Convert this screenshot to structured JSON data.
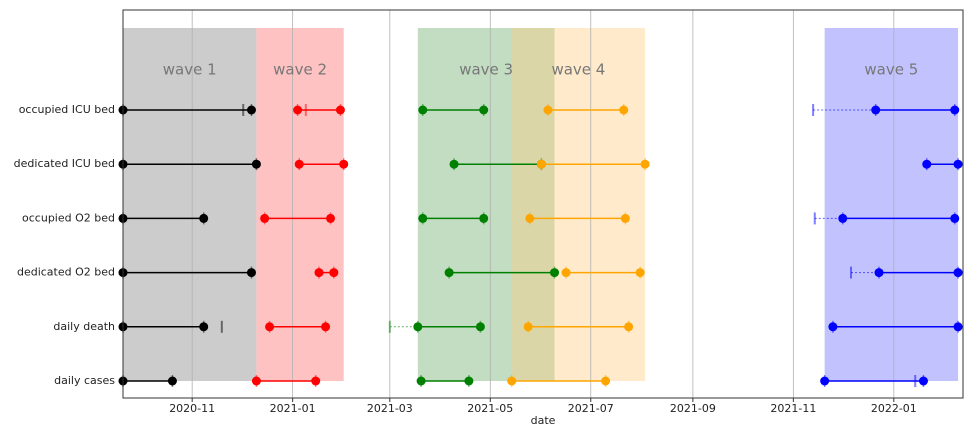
{
  "chart_data": {
    "type": "timeline",
    "xlabel": "date",
    "xlim": [
      "2020-09-20",
      "2022-02-12"
    ],
    "xticks": [
      "2020-11",
      "2021-01",
      "2021-03",
      "2021-05",
      "2021-07",
      "2021-09",
      "2021-11",
      "2022-01"
    ],
    "grid": true,
    "categories": [
      "occupied ICU bed",
      "dedicated ICU bed",
      "occupied O2 bed",
      "dedicated O2 bed",
      "daily death",
      "daily cases"
    ],
    "waves": [
      {
        "name": "wave 1",
        "fill": "#808080",
        "color": "#000000",
        "start": "2020-09-20",
        "end": "2020-12-10",
        "segments": [
          {
            "start": "2020-09-20",
            "end": "2020-12-07",
            "tick": "2020-12-02"
          },
          {
            "start": "2020-09-20",
            "end": "2020-12-10"
          },
          {
            "start": "2020-09-20",
            "end": "2020-11-08"
          },
          {
            "start": "2020-09-20",
            "end": "2020-12-07"
          },
          {
            "start": "2020-09-20",
            "end": "2020-11-08",
            "tick": "2020-11-19"
          },
          {
            "start": "2020-09-20",
            "end": "2020-10-20"
          }
        ]
      },
      {
        "name": "wave 2",
        "fill": "#ff6666",
        "color": "#ff0000",
        "start": "2020-12-10",
        "end": "2021-02-01",
        "segments": [
          {
            "start": "2021-01-04",
            "end": "2021-01-30",
            "tick": "2021-01-09"
          },
          {
            "start": "2021-01-05",
            "end": "2021-02-01"
          },
          {
            "start": "2020-12-15",
            "end": "2021-01-24"
          },
          {
            "start": "2021-01-17",
            "end": "2021-01-26"
          },
          {
            "start": "2020-12-18",
            "end": "2021-01-21"
          },
          {
            "start": "2020-12-10",
            "end": "2021-01-15"
          }
        ]
      },
      {
        "name": "wave 3",
        "fill": "#66aa66",
        "color": "#008000",
        "start": "2021-03-18",
        "end": "2021-06-09",
        "segments": [
          {
            "start": "2021-03-21",
            "end": "2021-04-27"
          },
          {
            "start": "2021-04-09",
            "end": "2021-06-01"
          },
          {
            "start": "2021-03-21",
            "end": "2021-04-27"
          },
          {
            "start": "2021-04-06",
            "end": "2021-06-09"
          },
          {
            "start": "2021-03-18",
            "end": "2021-04-25",
            "from": "2021-03-01"
          },
          {
            "start": "2021-03-20",
            "end": "2021-04-18"
          }
        ]
      },
      {
        "name": "wave 4",
        "fill": "#ffcc80",
        "color": "#ffa500",
        "start": "2021-05-14",
        "end": "2021-08-03",
        "segments": [
          {
            "start": "2021-06-05",
            "end": "2021-07-21"
          },
          {
            "start": "2021-06-01",
            "end": "2021-08-03"
          },
          {
            "start": "2021-05-25",
            "end": "2021-07-22"
          },
          {
            "start": "2021-06-16",
            "end": "2021-07-31"
          },
          {
            "start": "2021-05-24",
            "end": "2021-07-24"
          },
          {
            "start": "2021-05-14",
            "end": "2021-07-10"
          }
        ]
      },
      {
        "name": "wave 5",
        "fill": "#6666ff",
        "color": "#0000ff",
        "start": "2021-11-20",
        "end": "2022-02-09",
        "segments": [
          {
            "start": "2021-12-21",
            "end": "2022-02-07",
            "from": "2021-11-13"
          },
          {
            "start": "2022-01-21",
            "end": "2022-02-09"
          },
          {
            "start": "2021-12-01",
            "end": "2022-02-07",
            "from": "2021-11-14"
          },
          {
            "start": "2021-12-23",
            "end": "2022-02-09",
            "from": "2021-12-06"
          },
          {
            "start": "2021-11-25",
            "end": "2022-02-09"
          },
          {
            "start": "2021-11-20",
            "end": "2022-01-19",
            "tick": "2022-01-14"
          }
        ]
      }
    ]
  }
}
